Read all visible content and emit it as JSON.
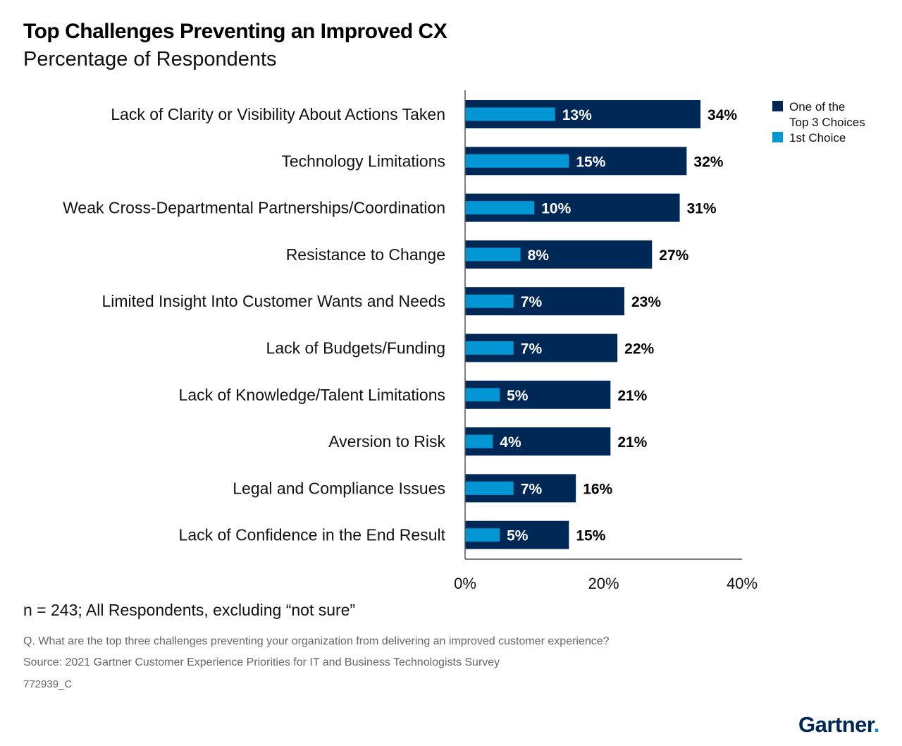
{
  "header": {
    "title": "Top Challenges Preventing an Improved CX",
    "subtitle": "Percentage of Respondents"
  },
  "colors": {
    "top3": "#002856",
    "first": "#0296d5",
    "axis": "#555555"
  },
  "chart_data": {
    "type": "bar",
    "orientation": "horizontal",
    "categories": [
      "Lack of Clarity or Visibility About Actions Taken",
      "Technology Limitations",
      "Weak Cross-Departmental Partnerships/Coordination",
      "Resistance to Change",
      "Limited Insight Into Customer Wants and Needs",
      "Lack of Budgets/Funding",
      "Lack of Knowledge/Talent Limitations",
      "Aversion to Risk",
      "Legal and Compliance Issues",
      "Lack of Confidence in the End Result"
    ],
    "series": [
      {
        "name": "One of the Top 3 Choices",
        "values": [
          34,
          32,
          31,
          27,
          23,
          22,
          21,
          21,
          16,
          15
        ]
      },
      {
        "name": "1st Choice",
        "values": [
          13,
          15,
          10,
          8,
          7,
          7,
          5,
          4,
          7,
          5
        ]
      }
    ],
    "xlim": [
      0,
      40
    ],
    "xticks": [
      0,
      20,
      40
    ],
    "tick_suffix": "%",
    "legend_position": "top-right",
    "legend_lines": [
      [
        "One of the",
        "Top 3 Choices"
      ],
      [
        "1st Choice"
      ]
    ]
  },
  "footer": {
    "note": "n = 243; All Respondents, excluding “not sure”",
    "question": "Q. What are the top three challenges preventing your organization from delivering an improved customer experience?",
    "source": "Source: 2021 Gartner Customer Experience Priorities for IT and Business Technologists Survey",
    "code": "772939_C",
    "logo": "Gartner",
    "logo_dot": "."
  }
}
